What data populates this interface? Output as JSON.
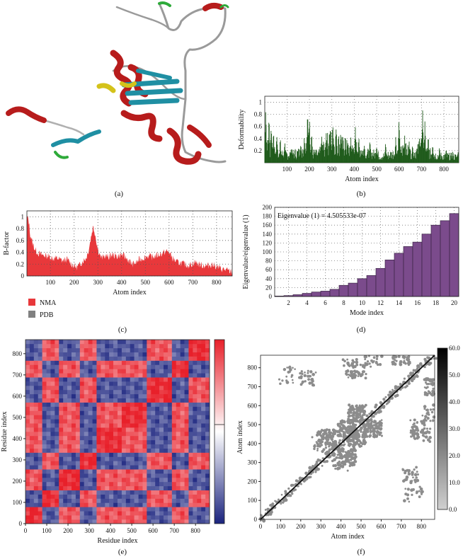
{
  "captions": {
    "a": "(a)",
    "b": "(b)",
    "c": "(c)",
    "d": "(d)",
    "e": "(e)",
    "f": "(f)"
  },
  "chart_data": [
    {
      "panel": "b",
      "type": "bar",
      "xlabel": "Atom index",
      "ylabel": "Deformability",
      "xlim": [
        1,
        866
      ],
      "ylim": [
        0,
        1.1
      ],
      "xticks": [
        100,
        200,
        300,
        400,
        500,
        600,
        700,
        800
      ],
      "yticks": [
        0.2,
        0.4,
        0.6,
        0.8,
        1
      ],
      "grid": true,
      "color": "#1e5a1a",
      "profile": [
        [
          1,
          0.52
        ],
        [
          10,
          0.4
        ],
        [
          20,
          0.32
        ],
        [
          40,
          0.28
        ],
        [
          60,
          0.22
        ],
        [
          80,
          0.18
        ],
        [
          100,
          0.18
        ],
        [
          130,
          0.2
        ],
        [
          160,
          0.22
        ],
        [
          180,
          0.4
        ],
        [
          190,
          0.62
        ],
        [
          200,
          0.5
        ],
        [
          215,
          0.2
        ],
        [
          240,
          0.18
        ],
        [
          260,
          0.3
        ],
        [
          280,
          0.42
        ],
        [
          300,
          0.5
        ],
        [
          320,
          0.45
        ],
        [
          340,
          0.38
        ],
        [
          360,
          0.35
        ],
        [
          380,
          0.3
        ],
        [
          400,
          0.3
        ],
        [
          420,
          0.32
        ],
        [
          440,
          0.25
        ],
        [
          460,
          0.2
        ],
        [
          480,
          0.2
        ],
        [
          500,
          0.17
        ],
        [
          520,
          0.15
        ],
        [
          540,
          0.15
        ],
        [
          560,
          0.18
        ],
        [
          580,
          0.2
        ],
        [
          600,
          0.22
        ],
        [
          620,
          0.3
        ],
        [
          640,
          0.25
        ],
        [
          660,
          0.22
        ],
        [
          680,
          0.25
        ],
        [
          700,
          0.35
        ],
        [
          720,
          0.25
        ],
        [
          740,
          0.2
        ],
        [
          760,
          0.17
        ],
        [
          780,
          0.15
        ],
        [
          800,
          0.15
        ],
        [
          820,
          0.14
        ],
        [
          840,
          0.14
        ],
        [
          866,
          0.12
        ]
      ],
      "peaks": [
        [
          5,
          0.98
        ],
        [
          20,
          0.88
        ],
        [
          30,
          0.76
        ],
        [
          40,
          0.62
        ],
        [
          55,
          0.55
        ],
        [
          70,
          0.45
        ],
        [
          90,
          0.4
        ],
        [
          120,
          0.32
        ],
        [
          160,
          0.35
        ],
        [
          178,
          0.52
        ],
        [
          192,
          0.93
        ],
        [
          200,
          0.84
        ],
        [
          210,
          0.6
        ],
        [
          255,
          0.48
        ],
        [
          275,
          0.65
        ],
        [
          290,
          0.72
        ],
        [
          305,
          0.78
        ],
        [
          320,
          0.68
        ],
        [
          340,
          0.6
        ],
        [
          360,
          0.55
        ],
        [
          385,
          0.48
        ],
        [
          405,
          0.6
        ],
        [
          420,
          0.5
        ],
        [
          445,
          0.4
        ],
        [
          470,
          0.42
        ],
        [
          500,
          0.36
        ],
        [
          540,
          0.4
        ],
        [
          585,
          0.5
        ],
        [
          600,
          0.82
        ],
        [
          625,
          0.55
        ],
        [
          645,
          0.48
        ],
        [
          660,
          0.38
        ],
        [
          690,
          0.6
        ],
        [
          705,
          0.92
        ],
        [
          715,
          0.72
        ],
        [
          730,
          0.5
        ],
        [
          750,
          0.4
        ],
        [
          780,
          0.3
        ],
        [
          810,
          0.26
        ],
        [
          840,
          0.24
        ],
        [
          862,
          0.22
        ]
      ]
    },
    {
      "panel": "c",
      "type": "area",
      "xlabel": "Atom index",
      "ylabel": "B-factor",
      "xlim": [
        1,
        866
      ],
      "ylim": [
        0,
        1.1
      ],
      "xticks": [
        100,
        200,
        300,
        400,
        500,
        600,
        700,
        800
      ],
      "yticks": [
        0,
        0.2,
        0.4,
        0.6,
        0.8,
        1
      ],
      "grid": true,
      "legend_position": "bottom-left",
      "series": [
        {
          "name": "NMA",
          "color": "#e8383b",
          "points": [
            [
              1,
              1
            ],
            [
              8,
              0.95
            ],
            [
              15,
              0.7
            ],
            [
              25,
              0.55
            ],
            [
              35,
              0.45
            ],
            [
              50,
              0.38
            ],
            [
              70,
              0.35
            ],
            [
              90,
              0.34
            ],
            [
              110,
              0.3
            ],
            [
              130,
              0.3
            ],
            [
              150,
              0.26
            ],
            [
              170,
              0.28
            ],
            [
              190,
              0.2
            ],
            [
              200,
              0.17
            ],
            [
              210,
              0.15
            ],
            [
              220,
              0.17
            ],
            [
              235,
              0.25
            ],
            [
              250,
              0.3
            ],
            [
              262,
              0.45
            ],
            [
              272,
              0.68
            ],
            [
              280,
              0.84
            ],
            [
              288,
              0.72
            ],
            [
              300,
              0.45
            ],
            [
              315,
              0.3
            ],
            [
              330,
              0.34
            ],
            [
              345,
              0.32
            ],
            [
              360,
              0.36
            ],
            [
              380,
              0.33
            ],
            [
              400,
              0.36
            ],
            [
              415,
              0.32
            ],
            [
              430,
              0.26
            ],
            [
              445,
              0.2
            ],
            [
              460,
              0.22
            ],
            [
              475,
              0.28
            ],
            [
              490,
              0.3
            ],
            [
              510,
              0.34
            ],
            [
              530,
              0.32
            ],
            [
              550,
              0.35
            ],
            [
              570,
              0.38
            ],
            [
              590,
              0.42
            ],
            [
              600,
              0.4
            ],
            [
              615,
              0.3
            ],
            [
              630,
              0.24
            ],
            [
              650,
              0.22
            ],
            [
              665,
              0.2
            ],
            [
              680,
              0.18
            ],
            [
              695,
              0.2
            ],
            [
              710,
              0.24
            ],
            [
              725,
              0.2
            ],
            [
              740,
              0.18
            ],
            [
              760,
              0.17
            ],
            [
              780,
              0.2
            ],
            [
              800,
              0.16
            ],
            [
              820,
              0.12
            ],
            [
              840,
              0.1
            ],
            [
              855,
              0.08
            ],
            [
              866,
              0.06
            ]
          ]
        },
        {
          "name": "PDB",
          "color": "#808080",
          "points": []
        }
      ]
    },
    {
      "panel": "d",
      "type": "bar",
      "xlabel": "Mode index",
      "ylabel": "Eigenvalue/eigenvalue (1)",
      "annotation": "Eigenvalue (1) = 4.505533e-07",
      "ylim": [
        0,
        200
      ],
      "yticks": [
        0,
        20,
        40,
        60,
        80,
        100,
        120,
        140,
        160,
        180,
        200
      ],
      "xticks": [
        2,
        4,
        6,
        8,
        10,
        12,
        14,
        16,
        18,
        20
      ],
      "grid": true,
      "color": "#7b4b8c",
      "categories": [
        1,
        2,
        3,
        4,
        5,
        6,
        7,
        8,
        9,
        10,
        11,
        12,
        13,
        14,
        15,
        16,
        17,
        18,
        19,
        20
      ],
      "values": [
        1,
        2,
        4,
        7,
        10,
        12,
        16,
        25,
        30,
        40,
        47,
        63,
        82,
        97,
        112,
        122,
        140,
        160,
        170,
        186
      ]
    },
    {
      "panel": "e",
      "type": "heatmap",
      "xlabel": "Residue index",
      "ylabel": "Residue index",
      "xlim": [
        0,
        866
      ],
      "ylim": [
        0,
        866
      ],
      "xticks": [
        0,
        100,
        200,
        300,
        400,
        500,
        600,
        700,
        800
      ],
      "yticks": [
        0,
        100,
        200,
        300,
        400,
        500,
        600,
        700,
        800
      ],
      "colormap": [
        "#1a237e",
        "#ffffff",
        "#e8202a"
      ],
      "domains": [
        0,
        80,
        160,
        250,
        330,
        450,
        580,
        690,
        760,
        866
      ]
    },
    {
      "panel": "f",
      "type": "heatmap",
      "xlabel": "Atom index",
      "ylabel": "Atom index",
      "xlim": [
        0,
        866
      ],
      "ylim": [
        0,
        866
      ],
      "xticks": [
        0,
        100,
        200,
        300,
        400,
        500,
        600,
        700,
        800
      ],
      "yticks": [
        0,
        100,
        200,
        300,
        400,
        500,
        600,
        700,
        800
      ],
      "colorbar_ticks": [
        "0.0",
        "10.0",
        "20.0",
        "30.0",
        "40.0",
        "50.0",
        "60.0"
      ],
      "clusters": [
        [
          330,
          430,
          0.35
        ],
        [
          430,
          480,
          0.35
        ],
        [
          480,
          560,
          0.35
        ],
        [
          700,
          860,
          0.25
        ],
        [
          400,
          300,
          0.12
        ],
        [
          740,
          230,
          0.12
        ],
        [
          790,
          480,
          0.15
        ],
        [
          130,
          760,
          0.08
        ],
        [
          450,
          800,
          0.1
        ],
        [
          560,
          850,
          0.1
        ]
      ]
    }
  ]
}
